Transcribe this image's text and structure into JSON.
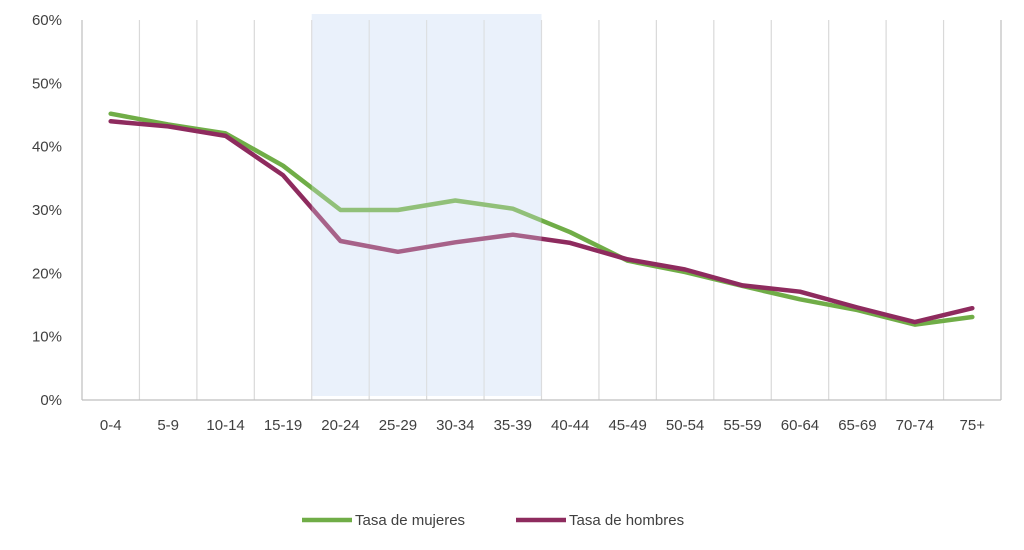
{
  "chart_data": {
    "type": "line",
    "categories": [
      "0-4",
      "5-9",
      "10-14",
      "15-19",
      "20-24",
      "25-29",
      "30-34",
      "35-39",
      "40-44",
      "45-49",
      "50-54",
      "55-59",
      "60-64",
      "65-69",
      "70-74",
      "75+"
    ],
    "series": [
      {
        "name": "Tasa de mujeres",
        "color": "#70AD47",
        "values": [
          45.2,
          43.5,
          42.1,
          37.0,
          30.0,
          30.0,
          31.5,
          30.2,
          26.5,
          22.0,
          20.2,
          18.0,
          15.9,
          14.2,
          11.9,
          13.1
        ]
      },
      {
        "name": "Tasa de hombres",
        "color": "#8E2B5E",
        "values": [
          44.0,
          43.2,
          41.7,
          35.5,
          25.1,
          23.4,
          24.9,
          26.1,
          24.8,
          22.2,
          20.6,
          18.1,
          17.1,
          14.6,
          12.3,
          14.5
        ]
      }
    ],
    "ylim": [
      0,
      60
    ],
    "yticks": [
      "0%",
      "10%",
      "20%",
      "30%",
      "40%",
      "50%",
      "60%"
    ],
    "highlight": {
      "from": "20-24",
      "to": "35-39",
      "color": "#EAF2FB"
    },
    "grid": "vertical",
    "legend": "bottom-center"
  }
}
